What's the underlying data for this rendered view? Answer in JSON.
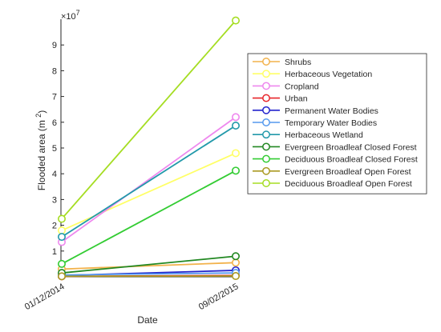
{
  "chart_data": {
    "type": "line",
    "title": "",
    "xlabel": "Date",
    "ylabel": "Flooded area (m ",
    "ylabel_superscript": "2",
    "ylabel_suffix": ")",
    "y_exponent_prefix": "×10",
    "y_exponent_power": "7",
    "categories": [
      "01/12/2014",
      "09/02/2015"
    ],
    "ylim": [
      0,
      10
    ],
    "yticks": [
      "1",
      "2",
      "3",
      "4",
      "5",
      "6",
      "7",
      "8",
      "9"
    ],
    "grid": false,
    "legend_position": "right",
    "series": [
      {
        "name": "Shrubs",
        "color": "#f2b24b",
        "values": [
          0.3,
          0.55
        ]
      },
      {
        "name": "Herbaceous Vegetation",
        "color": "#ffff66",
        "values": [
          1.8,
          4.8
        ]
      },
      {
        "name": "Cropland",
        "color": "#ee88ee",
        "values": [
          1.35,
          6.2
        ]
      },
      {
        "name": "Urban",
        "color": "#e8252a",
        "values": [
          0.02,
          0.05
        ]
      },
      {
        "name": "Permanent Water Bodies",
        "color": "#2222cc",
        "values": [
          0.05,
          0.25
        ]
      },
      {
        "name": "Temporary Water Bodies",
        "color": "#5599ee",
        "values": [
          0.07,
          0.15
        ]
      },
      {
        "name": "Herbaceous Wetland",
        "color": "#2299aa",
        "values": [
          1.55,
          5.87
        ]
      },
      {
        "name": "Evergreen Broadleaf Closed Forest",
        "color": "#228822",
        "values": [
          0.15,
          0.8
        ]
      },
      {
        "name": "Deciduous Broadleaf Closed Forest",
        "color": "#33cc33",
        "values": [
          0.5,
          4.12
        ]
      },
      {
        "name": "Evergreen Broadleaf Open Forest",
        "color": "#aa9922",
        "values": [
          0.02,
          0.03
        ]
      },
      {
        "name": "Deciduous Broadleaf Open Forest",
        "color": "#a5dd22",
        "values": [
          2.25,
          9.95
        ]
      }
    ]
  }
}
